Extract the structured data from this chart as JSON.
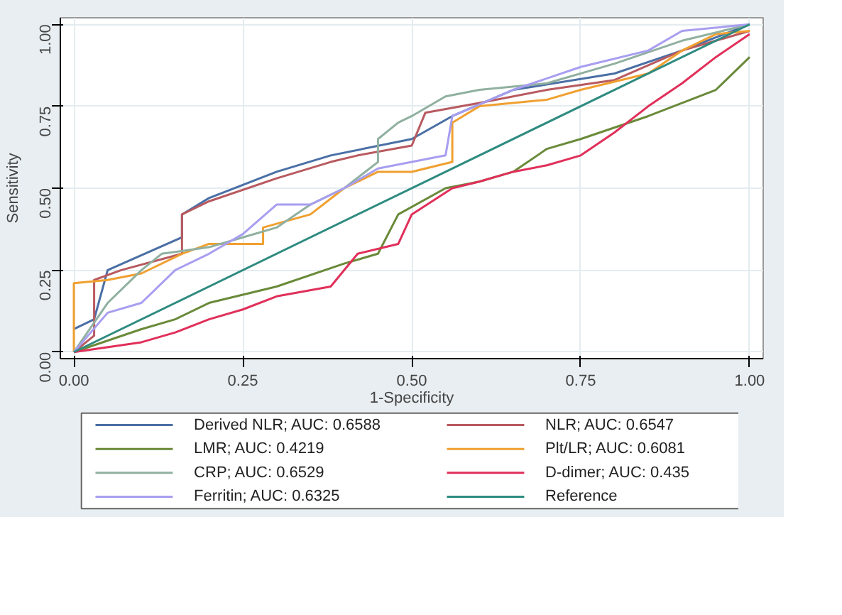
{
  "chart_data": {
    "type": "line",
    "xlabel": "1-Specificity",
    "ylabel": "Sensitivity",
    "xlim": [
      -0.02,
      1.02
    ],
    "ylim": [
      -0.02,
      1.02
    ],
    "xticks": [
      {
        "value": 0,
        "label": "0.00"
      },
      {
        "value": 0.25,
        "label": "0.25"
      },
      {
        "value": 0.5,
        "label": "0.50"
      },
      {
        "value": 0.75,
        "label": "0.75"
      },
      {
        "value": 1,
        "label": "1.00"
      }
    ],
    "yticks": [
      {
        "value": 0,
        "label": "0.00"
      },
      {
        "value": 0.25,
        "label": "0.25"
      },
      {
        "value": 0.5,
        "label": "0.50"
      },
      {
        "value": 0.75,
        "label": "0.75"
      },
      {
        "value": 1,
        "label": "1.00"
      }
    ],
    "grid": true,
    "legend": "bottom",
    "marker": "none",
    "line_style": "solid",
    "series": [
      {
        "name": "Derived NLR; AUC: 0.6588",
        "color": "#4a6fa5",
        "x": [
          0,
          0.03,
          0.05,
          0.16,
          0.16,
          0.2,
          0.3,
          0.38,
          0.5,
          0.56,
          0.65,
          0.8,
          0.9,
          1
        ],
        "values": [
          0.07,
          0.1,
          0.25,
          0.35,
          0.42,
          0.47,
          0.55,
          0.6,
          0.65,
          0.72,
          0.8,
          0.85,
          0.92,
          1
        ]
      },
      {
        "name": "NLR; AUC: 0.6547",
        "color": "#b85a60",
        "x": [
          0,
          0.03,
          0.03,
          0.07,
          0.16,
          0.16,
          0.2,
          0.3,
          0.38,
          0.42,
          0.5,
          0.52,
          0.6,
          0.7,
          0.8,
          0.9,
          0.95,
          1
        ],
        "values": [
          0,
          0.05,
          0.22,
          0.25,
          0.3,
          0.42,
          0.46,
          0.53,
          0.58,
          0.6,
          0.63,
          0.73,
          0.76,
          0.8,
          0.83,
          0.92,
          0.95,
          0.98
        ]
      },
      {
        "name": "LMR; AUC: 0.4219",
        "color": "#6a8a3a",
        "x": [
          0,
          0.1,
          0.15,
          0.2,
          0.3,
          0.4,
          0.45,
          0.48,
          0.55,
          0.6,
          0.65,
          0.7,
          0.75,
          0.85,
          0.95,
          1
        ],
        "values": [
          0,
          0.07,
          0.1,
          0.15,
          0.2,
          0.27,
          0.3,
          0.42,
          0.5,
          0.52,
          0.55,
          0.62,
          0.65,
          0.72,
          0.8,
          0.9
        ]
      },
      {
        "name": "Plt/LR; AUC: 0.6081",
        "color": "#f0a030",
        "x": [
          0,
          0,
          0.05,
          0.1,
          0.16,
          0.2,
          0.28,
          0.28,
          0.35,
          0.4,
          0.45,
          0.5,
          0.56,
          0.56,
          0.6,
          0.7,
          0.75,
          0.85,
          0.9,
          0.95,
          1
        ],
        "values": [
          0,
          0.21,
          0.22,
          0.24,
          0.3,
          0.33,
          0.33,
          0.38,
          0.42,
          0.5,
          0.55,
          0.55,
          0.58,
          0.7,
          0.75,
          0.77,
          0.8,
          0.85,
          0.92,
          0.97,
          0.98
        ]
      },
      {
        "name": "CRP; AUC: 0.6529",
        "color": "#90b0a0",
        "x": [
          0,
          0.05,
          0.1,
          0.13,
          0.2,
          0.25,
          0.3,
          0.35,
          0.4,
          0.45,
          0.45,
          0.48,
          0.5,
          0.55,
          0.6,
          0.7,
          0.8,
          0.9,
          1
        ],
        "values": [
          0,
          0.15,
          0.25,
          0.3,
          0.32,
          0.35,
          0.38,
          0.45,
          0.5,
          0.58,
          0.65,
          0.7,
          0.72,
          0.78,
          0.8,
          0.82,
          0.88,
          0.95,
          1
        ]
      },
      {
        "name": "D-dimer; AUC: 0.435",
        "color": "#e0305a",
        "x": [
          0,
          0.1,
          0.15,
          0.2,
          0.25,
          0.3,
          0.38,
          0.42,
          0.48,
          0.5,
          0.56,
          0.6,
          0.65,
          0.7,
          0.75,
          0.8,
          0.85,
          0.9,
          0.95,
          1
        ],
        "values": [
          0,
          0.03,
          0.06,
          0.1,
          0.13,
          0.17,
          0.2,
          0.3,
          0.33,
          0.42,
          0.5,
          0.52,
          0.55,
          0.57,
          0.6,
          0.67,
          0.75,
          0.82,
          0.9,
          0.97
        ]
      },
      {
        "name": "Ferritin; AUC: 0.6325",
        "color": "#a89ef0",
        "x": [
          0,
          0.05,
          0.1,
          0.15,
          0.2,
          0.25,
          0.3,
          0.35,
          0.4,
          0.45,
          0.5,
          0.55,
          0.56,
          0.65,
          0.75,
          0.85,
          0.9,
          1
        ],
        "values": [
          0,
          0.12,
          0.15,
          0.25,
          0.3,
          0.36,
          0.45,
          0.45,
          0.5,
          0.56,
          0.58,
          0.6,
          0.72,
          0.8,
          0.87,
          0.92,
          0.98,
          1
        ]
      },
      {
        "name": "Reference",
        "color": "#2e8b80",
        "x": [
          0,
          1
        ],
        "values": [
          0,
          1
        ]
      }
    ]
  }
}
